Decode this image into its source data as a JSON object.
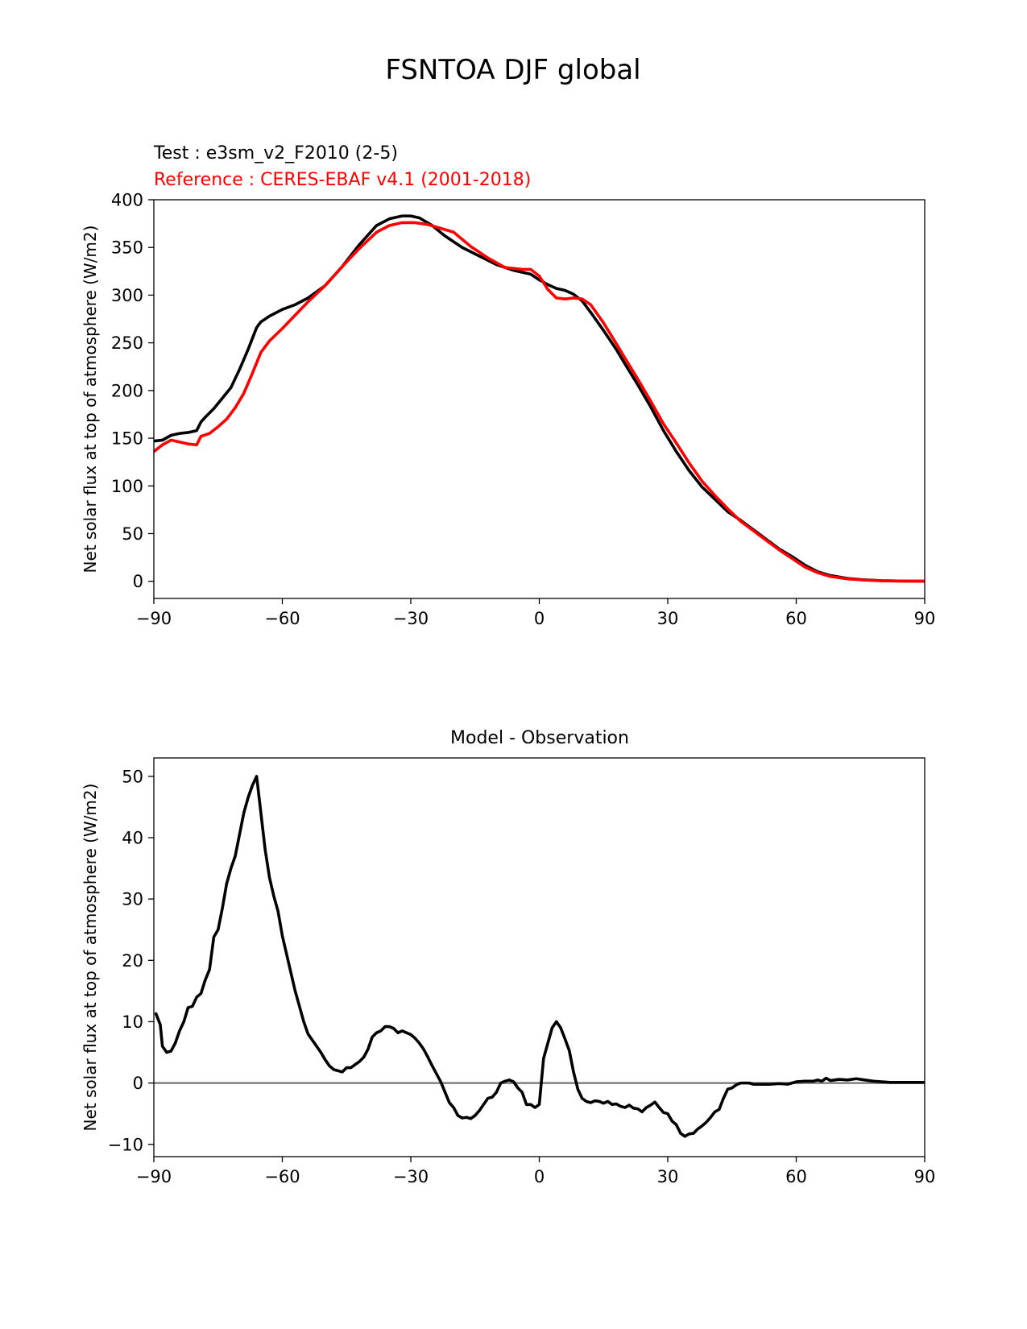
{
  "figure": {
    "title": "FSNTOA DJF global"
  },
  "chart_data": [
    {
      "type": "line",
      "id": "top-panel",
      "title": "",
      "legend_lines": [
        {
          "text": "Test : e3sm_v2_F2010 (2-5)",
          "color": "#000000"
        },
        {
          "text": "Reference : CERES-EBAF v4.1 (2001-2018)",
          "color": "#ff0000"
        }
      ],
      "xlabel": "",
      "ylabel": "Net solar flux at top of atmosphere (W/m2)",
      "xlim": [
        -90,
        90
      ],
      "ylim": [
        -18,
        400
      ],
      "xticks": [
        -90,
        -60,
        -30,
        0,
        30,
        60,
        90
      ],
      "xtick_labels": [
        "−90",
        "−60",
        "−30",
        "0",
        "30",
        "60",
        "90"
      ],
      "yticks": [
        0,
        50,
        100,
        150,
        200,
        250,
        300,
        350,
        400
      ],
      "ytick_labels": [
        "0",
        "50",
        "100",
        "150",
        "200",
        "250",
        "300",
        "350",
        "400"
      ],
      "grid": false,
      "series": [
        {
          "color": "#000000",
          "x": [
            -90,
            -88,
            -86,
            -84,
            -82,
            -80,
            -79,
            -78,
            -76,
            -74,
            -72,
            -70,
            -68,
            -66,
            -65,
            -63,
            -60,
            -57,
            -54,
            -50,
            -46,
            -42,
            -38,
            -35,
            -32,
            -30,
            -28,
            -25,
            -22,
            -18,
            -14,
            -10,
            -6,
            -2,
            0,
            2,
            4,
            6,
            8,
            10,
            12,
            15,
            18,
            20,
            23,
            26,
            29,
            32,
            35,
            38,
            41,
            44,
            47,
            50,
            53,
            56,
            59,
            62,
            65,
            68,
            72,
            76,
            80,
            85,
            90
          ],
          "y": [
            147,
            148,
            153,
            155,
            156,
            158,
            167,
            172,
            181,
            192,
            203,
            222,
            243,
            266,
            272,
            278,
            285,
            290,
            297,
            310,
            330,
            353,
            373,
            380,
            383,
            383,
            381,
            373,
            362,
            350,
            341,
            332,
            326,
            322,
            316,
            311,
            307,
            305,
            301,
            294,
            282,
            263,
            243,
            228,
            206,
            183,
            158,
            136,
            116,
            99,
            86,
            73,
            64,
            54,
            44,
            34,
            26,
            17,
            10,
            6,
            3,
            1.5,
            0.6,
            0.2,
            0.1
          ]
        },
        {
          "color": "#ff0000",
          "x": [
            -90,
            -88,
            -86,
            -84,
            -82,
            -80,
            -79,
            -77,
            -75,
            -73,
            -71,
            -69,
            -67,
            -65,
            -63,
            -60,
            -57,
            -54,
            -50,
            -46,
            -42,
            -38,
            -35,
            -32,
            -29,
            -26,
            -23,
            -20,
            -16,
            -12,
            -8,
            -4,
            -2,
            0,
            2,
            4,
            6,
            8,
            10,
            12,
            15,
            18,
            20,
            23,
            26,
            29,
            32,
            35,
            38,
            41,
            44,
            47,
            50,
            53,
            56,
            59,
            62,
            65,
            68,
            72,
            76,
            80,
            85,
            90
          ],
          "y": [
            136,
            143,
            148,
            146,
            144,
            143,
            152,
            155,
            162,
            170,
            182,
            197,
            218,
            240,
            252,
            265,
            279,
            293,
            310,
            330,
            349,
            366,
            373,
            376,
            376,
            374,
            370,
            366,
            351,
            339,
            329,
            327,
            327,
            320,
            306,
            297,
            296,
            297,
            296,
            290,
            271,
            249,
            234,
            212,
            189,
            165,
            145,
            124,
            105,
            90,
            76,
            63,
            53,
            43,
            33,
            24,
            15,
            9,
            5,
            2.5,
            1.2,
            0.5,
            0.2,
            0.1
          ]
        }
      ]
    },
    {
      "type": "line",
      "id": "bottom-panel",
      "title": "Model - Observation",
      "xlabel": "",
      "ylabel": "Net solar flux at top of atmosphere (W/m2)",
      "xlim": [
        -90,
        90
      ],
      "ylim": [
        -12,
        53
      ],
      "xticks": [
        -90,
        -60,
        -30,
        0,
        30,
        60,
        90
      ],
      "xtick_labels": [
        "−90",
        "−60",
        "−30",
        "0",
        "30",
        "60",
        "90"
      ],
      "yticks": [
        -10,
        0,
        10,
        20,
        30,
        40,
        50
      ],
      "ytick_labels": [
        "−10",
        "0",
        "10",
        "20",
        "30",
        "40",
        "50"
      ],
      "grid": false,
      "zero_line": {
        "y": 0,
        "color": "#808080"
      },
      "series": [
        {
          "color": "#000000",
          "x": [
            -89.5,
            -88.5,
            -88,
            -87,
            -86,
            -85,
            -84,
            -83,
            -82,
            -81,
            -80,
            -79,
            -78,
            -77,
            -76,
            -75,
            -74,
            -73,
            -72,
            -71,
            -70,
            -69,
            -68,
            -67,
            -66,
            -65,
            -64,
            -63,
            -62,
            -61,
            -60,
            -59,
            -58,
            -57,
            -56,
            -55,
            -54,
            -53,
            -52,
            -51,
            -50,
            -49,
            -48,
            -47,
            -46,
            -45,
            -44,
            -43,
            -42,
            -41,
            -40,
            -39,
            -38,
            -37,
            -36,
            -35,
            -34,
            -33,
            -32,
            -31,
            -30,
            -29,
            -28,
            -27,
            -26,
            -25,
            -24,
            -23,
            -22,
            -21,
            -20,
            -19,
            -18,
            -17,
            -16,
            -15,
            -14,
            -13,
            -12,
            -11,
            -10,
            -9,
            -8,
            -7,
            -6,
            -5,
            -4,
            -3,
            -2,
            -1,
            0,
            1,
            2,
            3,
            4,
            5,
            6,
            7,
            8,
            9,
            10,
            11,
            12,
            13,
            14,
            15,
            16,
            17,
            18,
            19,
            20,
            21,
            22,
            23,
            24,
            25,
            26,
            27,
            28,
            29,
            30,
            31,
            32,
            33,
            34,
            35,
            36,
            37,
            38,
            39,
            40,
            41,
            42,
            43,
            44,
            45,
            46,
            47,
            48,
            49,
            50,
            52,
            54,
            56,
            58,
            60,
            62,
            64,
            65,
            66,
            67,
            68,
            70,
            72,
            74,
            76,
            78,
            80,
            82,
            84,
            86,
            88,
            90
          ],
          "y": [
            11.3,
            9.5,
            6,
            5,
            5.2,
            6.5,
            8.5,
            10,
            12.3,
            12.5,
            14,
            14.6,
            16.8,
            18.5,
            23.8,
            25,
            28.5,
            32.5,
            35,
            37,
            40.5,
            44,
            46.5,
            48.5,
            50,
            44,
            38,
            33.5,
            30.5,
            28,
            24,
            21,
            18,
            15,
            12.5,
            10,
            8,
            7,
            6,
            5,
            3.8,
            2.8,
            2.2,
            2,
            1.8,
            2.5,
            2.5,
            3,
            3.5,
            4.2,
            5.5,
            7.5,
            8.2,
            8.5,
            9.2,
            9.2,
            8.9,
            8.2,
            8.5,
            8.2,
            7.9,
            7.3,
            6.5,
            5.5,
            4.2,
            2.8,
            1.5,
            0.2,
            -1.5,
            -3.2,
            -4,
            -5.3,
            -5.7,
            -5.6,
            -5.8,
            -5.3,
            -4.5,
            -3.5,
            -2.5,
            -2.3,
            -1.5,
            0,
            0.3,
            0.5,
            0.2,
            -0.8,
            -1.5,
            -3.5,
            -3.5,
            -4,
            -3.5,
            4,
            6.5,
            9,
            10,
            9,
            7.2,
            5.3,
            1.8,
            -1,
            -2.5,
            -3,
            -3.2,
            -2.9,
            -3,
            -3.3,
            -3,
            -3.5,
            -3.4,
            -3.8,
            -4,
            -3.6,
            -4.1,
            -4.2,
            -4.7,
            -4,
            -3.6,
            -3.1,
            -4,
            -4.8,
            -5,
            -6.2,
            -6.8,
            -8.2,
            -8.7,
            -8.3,
            -8.2,
            -7.5,
            -7,
            -6.4,
            -5.6,
            -4.7,
            -4.3,
            -2.5,
            -1,
            -0.8,
            -0.3,
            0,
            0,
            0,
            -0.2,
            -0.2,
            -0.2,
            -0.1,
            -0.2,
            0.2,
            0.3,
            0.3,
            0.5,
            0.3,
            0.8,
            0.4,
            0.6,
            0.5,
            0.7,
            0.5,
            0.3,
            0.2,
            0.1,
            0.1,
            0.1,
            0.1,
            0.1
          ]
        }
      ]
    }
  ]
}
